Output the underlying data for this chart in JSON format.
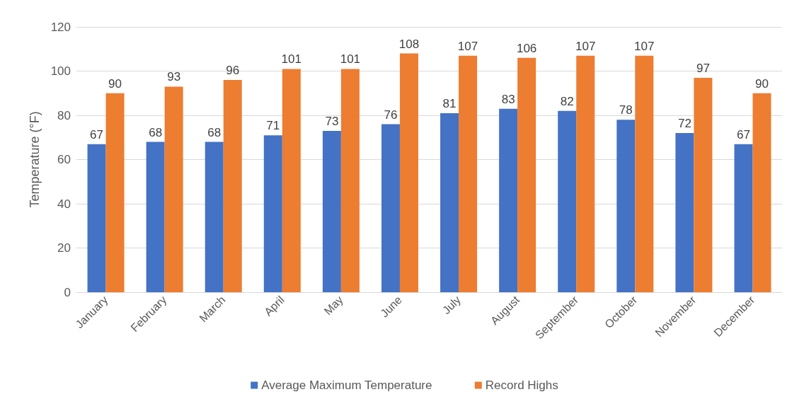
{
  "chart_data": {
    "type": "bar",
    "ylabel": "Temperature (°F)",
    "categories": [
      "January",
      "February",
      "March",
      "April",
      "May",
      "June",
      "July",
      "August",
      "September",
      "October",
      "November",
      "December"
    ],
    "series": [
      {
        "name": "Average Maximum Temperature",
        "color": "#4472c4",
        "values": [
          67,
          68,
          68,
          71,
          73,
          76,
          81,
          83,
          82,
          78,
          72,
          67
        ]
      },
      {
        "name": "Record Highs",
        "color": "#ed7d31",
        "values": [
          90,
          93,
          96,
          101,
          101,
          108,
          107,
          106,
          107,
          107,
          97,
          90
        ]
      }
    ],
    "ylim": [
      0,
      120
    ],
    "yticks": [
      0,
      20,
      40,
      60,
      80,
      100,
      120
    ],
    "grid": "y",
    "legend": "bottom",
    "data_labels": true
  }
}
